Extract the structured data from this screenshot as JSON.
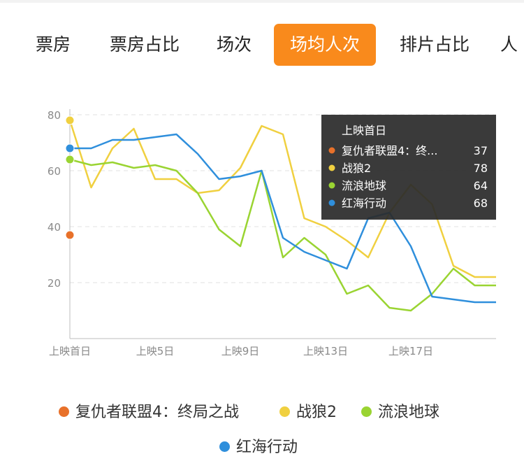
{
  "tabs": [
    {
      "label": "票房",
      "active": false
    },
    {
      "label": "票房占比",
      "active": false
    },
    {
      "label": "场次",
      "active": false
    },
    {
      "label": "场均人次",
      "active": true
    },
    {
      "label": "排片占比",
      "active": false
    },
    {
      "label": "人",
      "active": false
    }
  ],
  "colors": {
    "accent": "#f98a1c",
    "series": [
      "#e8712a",
      "#f0d040",
      "#9ad432",
      "#2f8fdc"
    ]
  },
  "chart_data": {
    "type": "line",
    "x_tick_labels": [
      "上映首日",
      "上映5日",
      "上映9日",
      "上映13日",
      "上映17日"
    ],
    "x_count": 21,
    "y_ticks": [
      20,
      40,
      60,
      80
    ],
    "ylim": [
      0,
      80
    ],
    "grid": "horizontal dashed",
    "legend": "bottom",
    "series": [
      {
        "name": "复仇者联盟4：终局之战",
        "values": [
          37
        ]
      },
      {
        "name": "战狼2",
        "values": [
          78,
          54,
          68,
          75,
          57,
          57,
          52,
          53,
          61,
          76,
          73,
          43,
          40,
          35,
          29,
          45,
          55,
          48,
          26,
          22,
          22
        ]
      },
      {
        "name": "流浪地球",
        "values": [
          64,
          62,
          63,
          61,
          62,
          60,
          52,
          39,
          33,
          60,
          29,
          36,
          30,
          16,
          19,
          11,
          10,
          16,
          25,
          19,
          19
        ]
      },
      {
        "name": "红海行动",
        "values": [
          68,
          68,
          71,
          71,
          72,
          73,
          66,
          57,
          58,
          60,
          36,
          31,
          28,
          25,
          43,
          45,
          33,
          15,
          14,
          13,
          13
        ]
      }
    ],
    "tooltip": {
      "title": "上映首日",
      "rows": [
        {
          "name": "复仇者联盟4：终...",
          "value": "37"
        },
        {
          "name": "战狼2",
          "value": "78"
        },
        {
          "name": "流浪地球",
          "value": "64"
        },
        {
          "name": "红海行动",
          "value": "68"
        }
      ]
    }
  }
}
